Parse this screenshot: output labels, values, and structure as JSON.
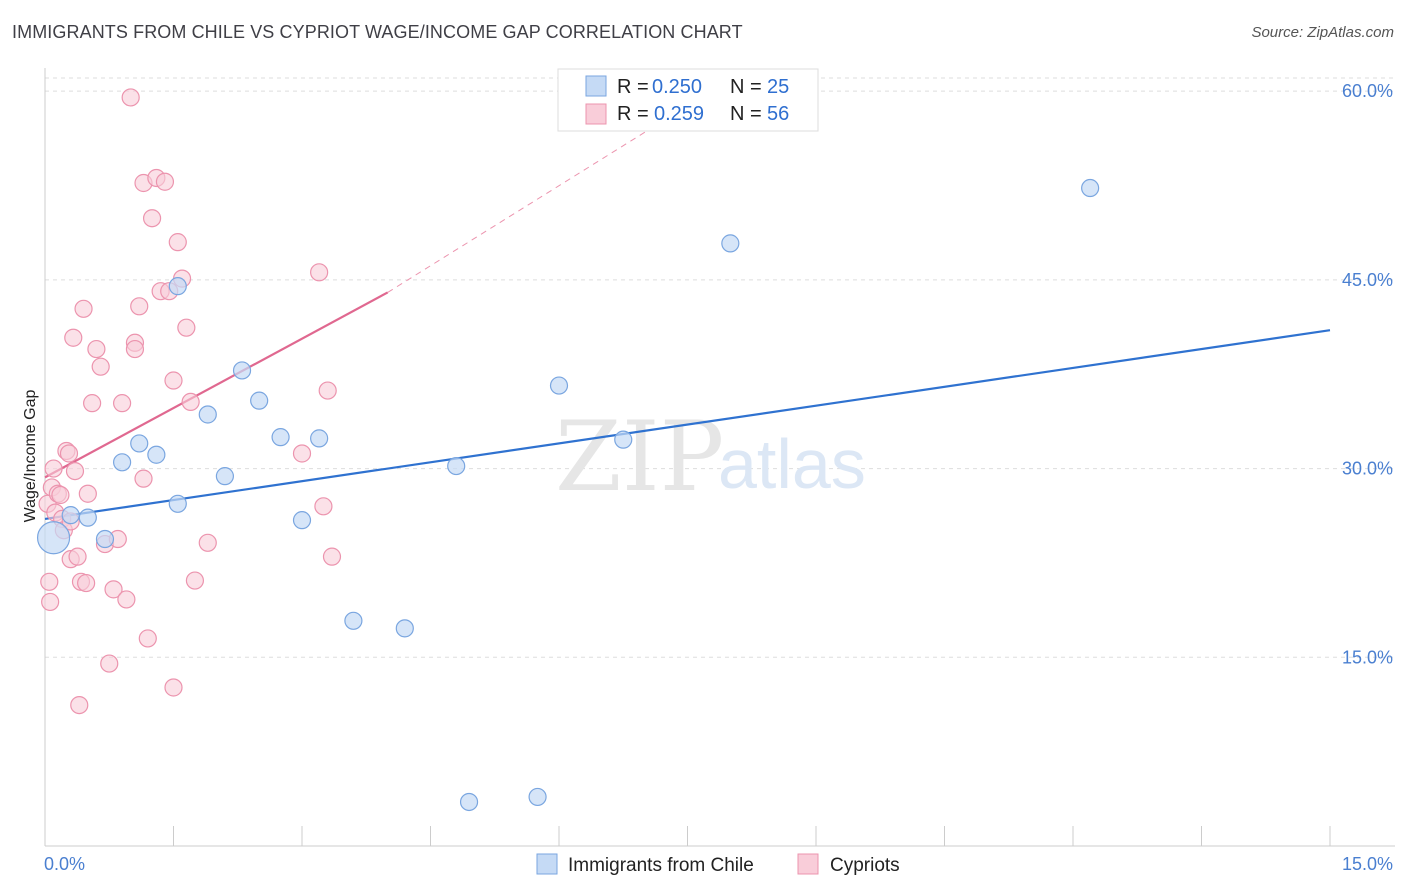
{
  "header": {
    "title": "IMMIGRANTS FROM CHILE VS CYPRIOT WAGE/INCOME GAP CORRELATION CHART",
    "source": "Source: ZipAtlas.com"
  },
  "watermark": {
    "zip": "ZIP",
    "atlas": "atlas"
  },
  "legend": {
    "series1": {
      "r_label": "R =",
      "r_value": "0.250",
      "n_label": "N =",
      "n_value": "25"
    },
    "series2": {
      "r_label": "R =",
      "r_value": "0.259",
      "n_label": "N =",
      "n_value": "56"
    }
  },
  "bottom_legend": {
    "series1": "Immigrants from Chile",
    "series2": "Cypriots"
  },
  "colors": {
    "blue_fill": "#c5daf5",
    "blue_stroke": "#7aa6e0",
    "blue_line": "#2f72d0",
    "pink_fill": "#f9cdd9",
    "pink_stroke": "#ec94ae",
    "pink_line": "#e06890",
    "grid": "#dddddd",
    "axis": "#cccccc"
  },
  "chart_data": {
    "type": "scatter",
    "title": "IMMIGRANTS FROM CHILE VS CYPRIOT WAGE/INCOME GAP CORRELATION CHART",
    "xlabel": "",
    "ylabel": "Wage/Income Gap",
    "xlim": [
      0,
      15
    ],
    "ylim": [
      0,
      62
    ],
    "x_tick_labels": [
      "0.0%",
      "15.0%"
    ],
    "y_ticks": [
      15,
      30,
      45,
      60
    ],
    "y_tick_labels": [
      "15.0%",
      "30.0%",
      "45.0%",
      "60.0%"
    ],
    "grid": true,
    "legend_position": "top-center",
    "series": [
      {
        "name": "Immigrants from Chile",
        "color": "#7aa6e0",
        "r": 0.25,
        "n": 25,
        "points": [
          [
            0.1,
            24.5
          ],
          [
            0.3,
            26.3
          ],
          [
            0.5,
            26.1
          ],
          [
            0.7,
            24.4
          ],
          [
            0.9,
            30.5
          ],
          [
            1.1,
            32.0
          ],
          [
            1.3,
            31.1
          ],
          [
            1.55,
            27.2
          ],
          [
            1.55,
            44.5
          ],
          [
            1.9,
            34.3
          ],
          [
            2.1,
            29.4
          ],
          [
            2.3,
            37.8
          ],
          [
            2.5,
            35.4
          ],
          [
            2.75,
            32.5
          ],
          [
            3.0,
            25.9
          ],
          [
            3.2,
            32.4
          ],
          [
            3.6,
            17.9
          ],
          [
            4.2,
            17.3
          ],
          [
            4.8,
            30.2
          ],
          [
            4.95,
            3.5
          ],
          [
            5.75,
            3.9
          ],
          [
            6.0,
            36.6
          ],
          [
            6.75,
            32.3
          ],
          [
            8.0,
            47.9
          ],
          [
            12.2,
            52.3
          ]
        ],
        "trend": {
          "x": [
            0,
            15
          ],
          "y": [
            26.0,
            41.0
          ]
        }
      },
      {
        "name": "Cypriots",
        "color": "#ec94ae",
        "r": 0.259,
        "n": 56,
        "points": [
          [
            0.03,
            27.2
          ],
          [
            0.05,
            21.0
          ],
          [
            0.06,
            19.4
          ],
          [
            0.08,
            28.5
          ],
          [
            0.1,
            30.0
          ],
          [
            0.12,
            26.5
          ],
          [
            0.15,
            28.0
          ],
          [
            0.18,
            27.9
          ],
          [
            0.2,
            26.0
          ],
          [
            0.22,
            25.1
          ],
          [
            0.25,
            31.4
          ],
          [
            0.28,
            31.2
          ],
          [
            0.3,
            25.8
          ],
          [
            0.3,
            22.8
          ],
          [
            0.33,
            40.4
          ],
          [
            0.35,
            29.8
          ],
          [
            0.38,
            23.0
          ],
          [
            0.4,
            11.2
          ],
          [
            0.42,
            21.0
          ],
          [
            0.45,
            42.7
          ],
          [
            0.48,
            20.9
          ],
          [
            0.5,
            28.0
          ],
          [
            0.55,
            35.2
          ],
          [
            0.6,
            39.5
          ],
          [
            0.65,
            38.1
          ],
          [
            0.7,
            24.0
          ],
          [
            0.75,
            14.5
          ],
          [
            0.8,
            20.4
          ],
          [
            0.85,
            24.4
          ],
          [
            0.9,
            35.2
          ],
          [
            0.95,
            19.6
          ],
          [
            1.0,
            59.5
          ],
          [
            1.05,
            40.0
          ],
          [
            1.05,
            39.5
          ],
          [
            1.1,
            42.9
          ],
          [
            1.15,
            52.7
          ],
          [
            1.15,
            29.2
          ],
          [
            1.2,
            16.5
          ],
          [
            1.25,
            49.9
          ],
          [
            1.3,
            53.1
          ],
          [
            1.35,
            44.1
          ],
          [
            1.4,
            52.8
          ],
          [
            1.45,
            44.1
          ],
          [
            1.5,
            37.0
          ],
          [
            1.5,
            12.6
          ],
          [
            1.55,
            48.0
          ],
          [
            1.6,
            45.1
          ],
          [
            1.65,
            41.2
          ],
          [
            1.7,
            35.3
          ],
          [
            1.75,
            21.1
          ],
          [
            1.9,
            24.1
          ],
          [
            3.0,
            31.2
          ],
          [
            3.2,
            45.6
          ],
          [
            3.25,
            27.0
          ],
          [
            3.3,
            36.2
          ],
          [
            3.35,
            23.0
          ]
        ],
        "trend": {
          "x": [
            0,
            4.0
          ],
          "y": [
            29.3,
            44.0
          ]
        },
        "trend_extension": {
          "x": [
            4.0,
            7.3
          ],
          "y": [
            44.0,
            58.0
          ]
        }
      }
    ]
  }
}
